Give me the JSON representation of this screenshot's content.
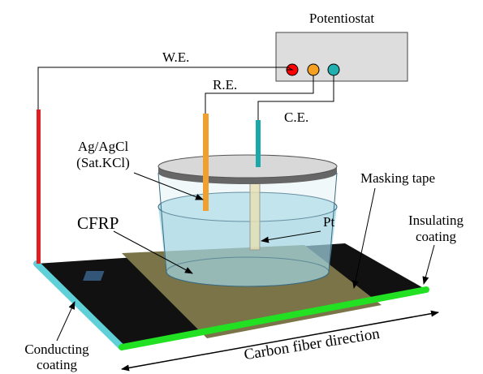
{
  "labels": {
    "potentiostat": "Potentiostat",
    "we": "W.E.",
    "re": "R.E.",
    "ce": "C.E.",
    "ag_agcl": [
      "Ag/AgCl",
      "(Sat.KCl)"
    ],
    "masking_tape": "Masking tape",
    "cfrp": "CFRP",
    "pt": "Pt",
    "insulating": [
      "Insulating",
      "coating"
    ],
    "conducting": [
      "Conducting",
      "coating"
    ],
    "direction": "Carbon fiber direction"
  }
}
